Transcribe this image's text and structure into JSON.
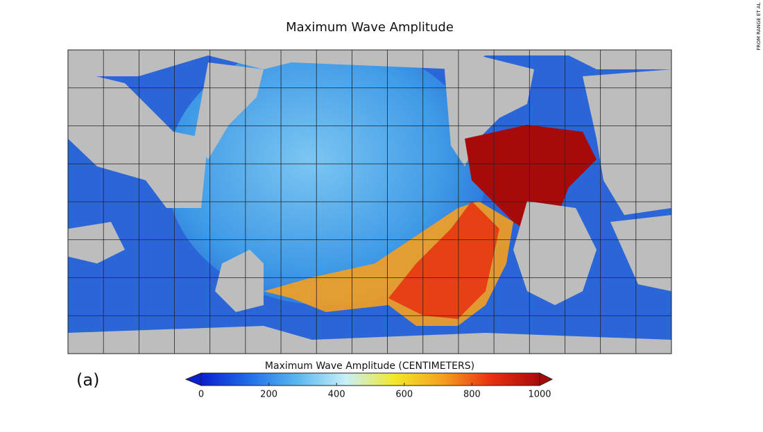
{
  "header": {
    "title": "Maximum Wave Amplitude"
  },
  "panel_label": "(a)",
  "credit": "FROM RANGE ET AL",
  "colorbar": {
    "label": "Maximum Wave Amplitude (CENTIMETERS)",
    "lim": [
      0,
      1000
    ],
    "ticks": [
      0,
      200,
      400,
      600,
      800,
      1000
    ],
    "colors": [
      "#0a1fd0",
      "#1f6fe8",
      "#5ab8f0",
      "#c8f0f8",
      "#f2e82a",
      "#f5a020",
      "#e83010",
      "#a80a0a"
    ]
  }
}
